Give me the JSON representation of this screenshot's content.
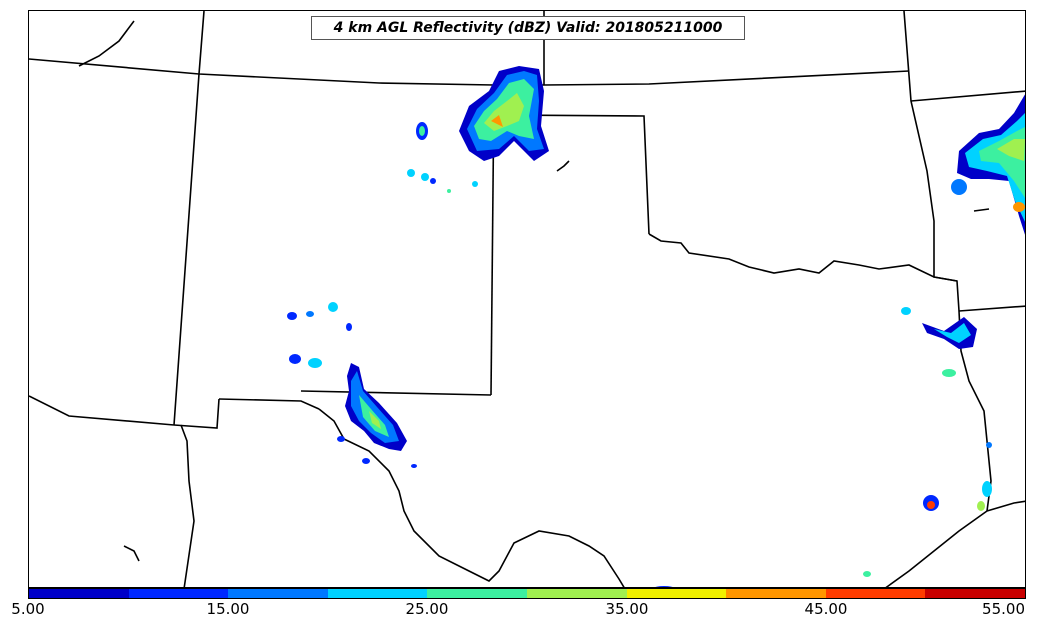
{
  "title": "4 km AGL Reflectivity (dBZ) Valid: 201805211000",
  "colorbar": {
    "ticks": [
      "5.00",
      "15.00",
      "25.00",
      "35.00",
      "45.00",
      "55.00"
    ],
    "colors": [
      "#0000c8",
      "#0028ff",
      "#0078ff",
      "#00d2ff",
      "#3cf0a0",
      "#a0f050",
      "#f0f000",
      "#ff9600",
      "#ff3c00",
      "#c80000"
    ]
  }
}
